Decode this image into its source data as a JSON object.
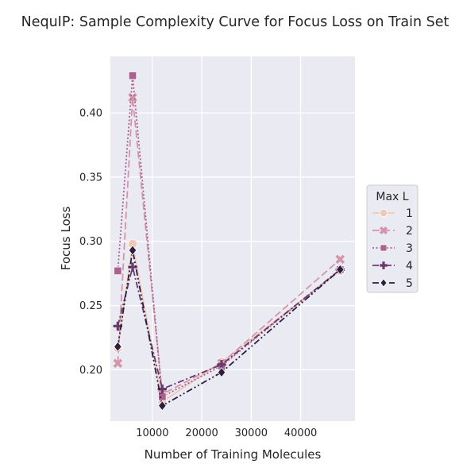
{
  "chart_data": {
    "type": "line",
    "title": "NequIP: Sample Complexity Curve for Focus Loss on Train Set",
    "xlabel": "Number of Training Molecules",
    "ylabel": "Focus Loss",
    "xlim": [
      1500,
      51000
    ],
    "ylim": [
      0.16,
      0.444
    ],
    "xticks": [
      10000,
      20000,
      30000,
      40000
    ],
    "xtick_labels": [
      "10000",
      "20000",
      "30000",
      "40000"
    ],
    "yticks": [
      0.2,
      0.25,
      0.3,
      0.35,
      0.4
    ],
    "ytick_labels": [
      "0.20",
      "0.25",
      "0.30",
      "0.35",
      "0.40"
    ],
    "grid": true,
    "legend": {
      "title": "Max L",
      "placement": "right"
    },
    "x": [
      3000,
      6000,
      12000,
      24000,
      48000
    ],
    "series": [
      {
        "name": "1",
        "values": [
          0.217,
          0.298,
          0.175,
          0.206,
          0.277
        ],
        "color": "#efc9b8",
        "marker": "circle",
        "dash": ""
      },
      {
        "name": "2",
        "values": [
          0.205,
          0.412,
          0.181,
          0.205,
          0.286
        ],
        "color": "#d495a9",
        "marker": "x",
        "dash": "9,4"
      },
      {
        "name": "3",
        "values": [
          0.277,
          0.429,
          0.179,
          0.203,
          0.278
        ],
        "color": "#a9618f",
        "marker": "square",
        "dash": "2,2.5"
      },
      {
        "name": "4",
        "values": [
          0.234,
          0.28,
          0.185,
          0.204,
          0.278
        ],
        "color": "#6a3a6c",
        "marker": "plus",
        "dash": "8,3,2,3"
      },
      {
        "name": "5",
        "values": [
          0.218,
          0.293,
          0.172,
          0.198,
          0.278
        ],
        "color": "#2d1e3e",
        "marker": "diamond",
        "dash": "8,3,2,3,2,3"
      }
    ]
  }
}
